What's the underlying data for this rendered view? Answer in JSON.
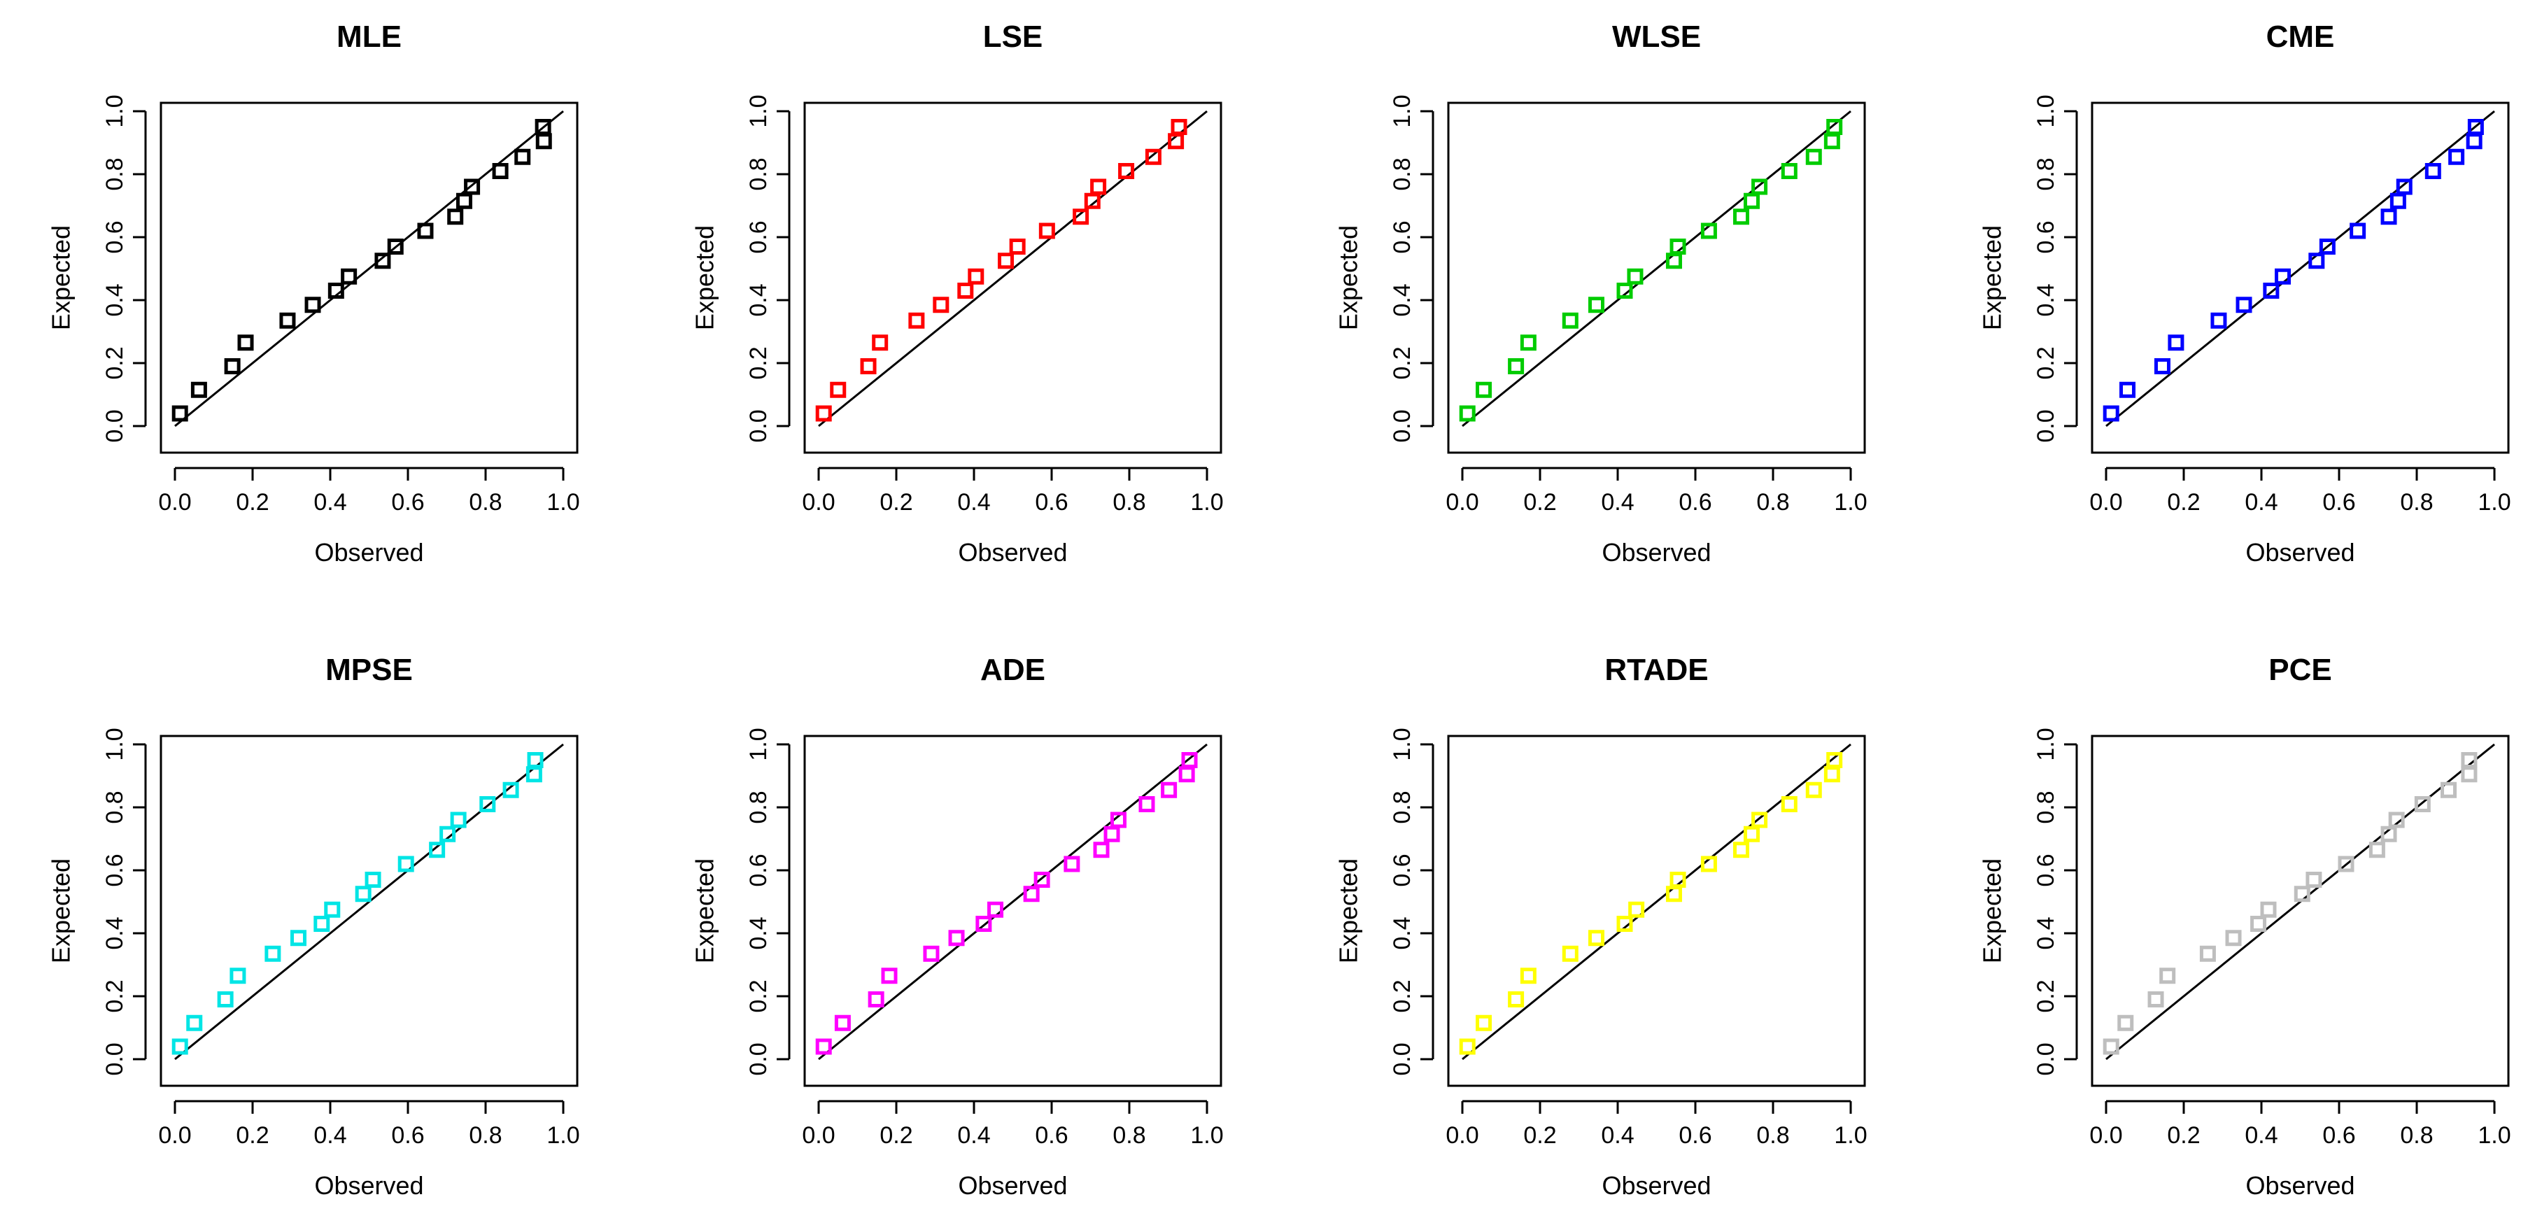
{
  "chart_data": [
    {
      "type": "scatter",
      "title": "MLE",
      "xlabel": "Observed",
      "ylabel": "Expected",
      "xlim": [
        0,
        1
      ],
      "ylim": [
        0,
        1
      ],
      "xticks": [
        "0.0",
        "0.2",
        "0.4",
        "0.6",
        "0.8",
        "1.0"
      ],
      "yticks": [
        "0.0",
        "0.2",
        "0.4",
        "0.6",
        "0.8",
        "1.0"
      ],
      "color": "#000000",
      "reference_line": "y = x",
      "x": [
        0.013,
        0.062,
        0.148,
        0.182,
        0.29,
        0.355,
        0.415,
        0.448,
        0.535,
        0.568,
        0.645,
        0.722,
        0.745,
        0.765,
        0.838,
        0.895,
        0.95,
        0.948
      ],
      "y": [
        0.04,
        0.115,
        0.19,
        0.265,
        0.335,
        0.385,
        0.43,
        0.475,
        0.525,
        0.57,
        0.62,
        0.665,
        0.715,
        0.76,
        0.81,
        0.855,
        0.905,
        0.95
      ]
    },
    {
      "type": "scatter",
      "title": "LSE",
      "xlabel": "Observed",
      "ylabel": "Expected",
      "xlim": [
        0,
        1
      ],
      "ylim": [
        0,
        1
      ],
      "xticks": [
        "0.0",
        "0.2",
        "0.4",
        "0.6",
        "0.8",
        "1.0"
      ],
      "yticks": [
        "0.0",
        "0.2",
        "0.4",
        "0.6",
        "0.8",
        "1.0"
      ],
      "color": "#ff0000",
      "reference_line": "y = x",
      "x": [
        0.013,
        0.05,
        0.128,
        0.158,
        0.252,
        0.315,
        0.378,
        0.405,
        0.482,
        0.512,
        0.588,
        0.675,
        0.705,
        0.72,
        0.792,
        0.862,
        0.92,
        0.928
      ],
      "y": [
        0.04,
        0.115,
        0.19,
        0.265,
        0.335,
        0.385,
        0.43,
        0.475,
        0.525,
        0.57,
        0.62,
        0.665,
        0.715,
        0.76,
        0.81,
        0.855,
        0.905,
        0.95
      ]
    },
    {
      "type": "scatter",
      "title": "WLSE",
      "xlabel": "Observed",
      "ylabel": "Expected",
      "xlim": [
        0,
        1
      ],
      "ylim": [
        0,
        1
      ],
      "xticks": [
        "0.0",
        "0.2",
        "0.4",
        "0.6",
        "0.8",
        "1.0"
      ],
      "yticks": [
        "0.0",
        "0.2",
        "0.4",
        "0.6",
        "0.8",
        "1.0"
      ],
      "color": "#00cc00",
      "reference_line": "y = x",
      "x": [
        0.013,
        0.055,
        0.138,
        0.17,
        0.278,
        0.345,
        0.418,
        0.445,
        0.545,
        0.555,
        0.635,
        0.718,
        0.745,
        0.765,
        0.842,
        0.905,
        0.952,
        0.958
      ],
      "y": [
        0.04,
        0.115,
        0.19,
        0.265,
        0.335,
        0.385,
        0.43,
        0.475,
        0.525,
        0.57,
        0.62,
        0.665,
        0.715,
        0.76,
        0.81,
        0.855,
        0.905,
        0.95
      ]
    },
    {
      "type": "scatter",
      "title": "CME",
      "xlabel": "Observed",
      "ylabel": "Expected",
      "xlim": [
        0,
        1
      ],
      "ylim": [
        0,
        1
      ],
      "xticks": [
        "0.0",
        "0.2",
        "0.4",
        "0.6",
        "0.8",
        "1.0"
      ],
      "yticks": [
        "0.0",
        "0.2",
        "0.4",
        "0.6",
        "0.8",
        "1.0"
      ],
      "color": "#0000ff",
      "reference_line": "y = x",
      "x": [
        0.013,
        0.055,
        0.145,
        0.18,
        0.29,
        0.355,
        0.425,
        0.455,
        0.542,
        0.57,
        0.648,
        0.728,
        0.752,
        0.768,
        0.842,
        0.902,
        0.948,
        0.952
      ],
      "y": [
        0.04,
        0.115,
        0.19,
        0.265,
        0.335,
        0.385,
        0.43,
        0.475,
        0.525,
        0.57,
        0.62,
        0.665,
        0.715,
        0.76,
        0.81,
        0.855,
        0.905,
        0.95
      ]
    },
    {
      "type": "scatter",
      "title": "MPSE",
      "xlabel": "Observed",
      "ylabel": "Expected",
      "xlim": [
        0,
        1
      ],
      "ylim": [
        0,
        1
      ],
      "xticks": [
        "0.0",
        "0.2",
        "0.4",
        "0.6",
        "0.8",
        "1.0"
      ],
      "yticks": [
        "0.0",
        "0.2",
        "0.4",
        "0.6",
        "0.8",
        "1.0"
      ],
      "color": "#00e5e5",
      "reference_line": "y = x",
      "x": [
        0.013,
        0.05,
        0.13,
        0.162,
        0.252,
        0.318,
        0.378,
        0.405,
        0.485,
        0.51,
        0.595,
        0.675,
        0.702,
        0.73,
        0.805,
        0.865,
        0.925,
        0.928
      ],
      "y": [
        0.04,
        0.115,
        0.19,
        0.265,
        0.335,
        0.385,
        0.43,
        0.475,
        0.525,
        0.57,
        0.62,
        0.665,
        0.715,
        0.76,
        0.81,
        0.855,
        0.905,
        0.95
      ]
    },
    {
      "type": "scatter",
      "title": "ADE",
      "xlabel": "Observed",
      "ylabel": "Expected",
      "xlim": [
        0,
        1
      ],
      "ylim": [
        0,
        1
      ],
      "xticks": [
        "0.0",
        "0.2",
        "0.4",
        "0.6",
        "0.8",
        "1.0"
      ],
      "yticks": [
        "0.0",
        "0.2",
        "0.4",
        "0.6",
        "0.8",
        "1.0"
      ],
      "color": "#ff00ff",
      "reference_line": "y = x",
      "x": [
        0.013,
        0.062,
        0.148,
        0.182,
        0.29,
        0.355,
        0.425,
        0.455,
        0.548,
        0.575,
        0.652,
        0.728,
        0.755,
        0.772,
        0.845,
        0.902,
        0.948,
        0.955
      ],
      "y": [
        0.04,
        0.115,
        0.19,
        0.265,
        0.335,
        0.385,
        0.43,
        0.475,
        0.525,
        0.57,
        0.62,
        0.665,
        0.715,
        0.76,
        0.81,
        0.855,
        0.905,
        0.95
      ]
    },
    {
      "type": "scatter",
      "title": "RTADE",
      "xlabel": "Observed",
      "ylabel": "Expected",
      "xlim": [
        0,
        1
      ],
      "ylim": [
        0,
        1
      ],
      "xticks": [
        "0.0",
        "0.2",
        "0.4",
        "0.6",
        "0.8",
        "1.0"
      ],
      "yticks": [
        "0.0",
        "0.2",
        "0.4",
        "0.6",
        "0.8",
        "1.0"
      ],
      "color": "#ffff00",
      "reference_line": "y = x",
      "x": [
        0.013,
        0.055,
        0.138,
        0.17,
        0.278,
        0.345,
        0.418,
        0.448,
        0.545,
        0.555,
        0.635,
        0.718,
        0.745,
        0.765,
        0.842,
        0.905,
        0.952,
        0.958
      ],
      "y": [
        0.04,
        0.115,
        0.19,
        0.265,
        0.335,
        0.385,
        0.43,
        0.475,
        0.525,
        0.57,
        0.62,
        0.665,
        0.715,
        0.76,
        0.81,
        0.855,
        0.905,
        0.95
      ]
    },
    {
      "type": "scatter",
      "title": "PCE",
      "xlabel": "Observed",
      "ylabel": "Expected",
      "xlim": [
        0,
        1
      ],
      "ylim": [
        0,
        1
      ],
      "xticks": [
        "0.0",
        "0.2",
        "0.4",
        "0.6",
        "0.8",
        "1.0"
      ],
      "yticks": [
        "0.0",
        "0.2",
        "0.4",
        "0.6",
        "0.8",
        "1.0"
      ],
      "color": "#bebebe",
      "reference_line": "y = x",
      "x": [
        0.013,
        0.05,
        0.128,
        0.158,
        0.262,
        0.328,
        0.392,
        0.418,
        0.505,
        0.535,
        0.618,
        0.698,
        0.728,
        0.748,
        0.815,
        0.882,
        0.935,
        0.935
      ],
      "y": [
        0.04,
        0.115,
        0.19,
        0.265,
        0.335,
        0.385,
        0.43,
        0.475,
        0.525,
        0.57,
        0.62,
        0.665,
        0.715,
        0.76,
        0.81,
        0.855,
        0.905,
        0.95
      ]
    }
  ]
}
